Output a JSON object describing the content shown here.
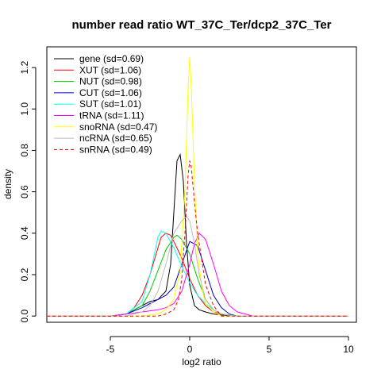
{
  "chart_data": {
    "type": "line",
    "title": "number read ratio WT_37C_Ter/dcp2_37C_Ter",
    "xlabel": "log2 ratio",
    "ylabel": "density",
    "xlim": [
      -9,
      10.5
    ],
    "ylim": [
      -0.03,
      1.3
    ],
    "x_ticks": [
      -5,
      0,
      5,
      10
    ],
    "y_ticks": [
      0.0,
      0.2,
      0.4,
      0.6,
      0.8,
      1.0,
      1.2
    ],
    "grid": false,
    "legend_position": "top-left",
    "series": [
      {
        "name": "gene (sd=0.69)",
        "color": "#000000",
        "dash": false,
        "x": [
          -9,
          -5,
          -4,
          -3.5,
          -3,
          -2.5,
          -2,
          -1.5,
          -1.2,
          -1.0,
          -0.8,
          -0.6,
          -0.4,
          -0.2,
          0.0,
          0.3,
          0.6,
          1.0,
          1.5,
          2.0,
          3.0,
          10
        ],
        "y": [
          0,
          0,
          0.01,
          0.03,
          0.05,
          0.07,
          0.08,
          0.12,
          0.25,
          0.5,
          0.75,
          0.78,
          0.65,
          0.35,
          0.15,
          0.05,
          0.03,
          0.02,
          0.01,
          0.005,
          0,
          0
        ]
      },
      {
        "name": "XUT (sd=1.06)",
        "color": "#ff0000",
        "dash": false,
        "x": [
          -9,
          -5,
          -4,
          -3.5,
          -3,
          -2.5,
          -2,
          -1.8,
          -1.5,
          -1.2,
          -1.0,
          -0.5,
          0.0,
          0.5,
          1.0,
          1.5,
          2.0,
          3.0,
          10
        ],
        "y": [
          0,
          0,
          0.01,
          0.04,
          0.1,
          0.2,
          0.33,
          0.38,
          0.4,
          0.39,
          0.36,
          0.28,
          0.18,
          0.1,
          0.05,
          0.02,
          0.01,
          0,
          0
        ]
      },
      {
        "name": "NUT (sd=0.98)",
        "color": "#00cc00",
        "dash": false,
        "x": [
          -9,
          -5,
          -4,
          -3,
          -2.5,
          -2,
          -1.5,
          -1.0,
          -0.8,
          -0.5,
          0.0,
          0.5,
          1.0,
          1.5,
          2.0,
          3.0,
          10
        ],
        "y": [
          0,
          0,
          0.01,
          0.05,
          0.12,
          0.22,
          0.32,
          0.38,
          0.39,
          0.37,
          0.3,
          0.18,
          0.08,
          0.03,
          0.01,
          0,
          0
        ]
      },
      {
        "name": "CUT (sd=1.06)",
        "color": "#0000cc",
        "dash": false,
        "x": [
          -9,
          -5,
          -4,
          -3,
          -2.5,
          -2,
          -1.5,
          -1.0,
          -0.5,
          0.0,
          0.5,
          1.0,
          1.5,
          2.0,
          2.5,
          3.0,
          10
        ],
        "y": [
          0,
          0,
          0.01,
          0.04,
          0.06,
          0.08,
          0.1,
          0.14,
          0.25,
          0.36,
          0.34,
          0.22,
          0.1,
          0.04,
          0.01,
          0,
          0
        ]
      },
      {
        "name": "SUT (sd=1.01)",
        "color": "#00ffff",
        "dash": false,
        "x": [
          -9,
          -5,
          -4,
          -3,
          -2.5,
          -2,
          -1.8,
          -1.5,
          -1.0,
          -0.5,
          0.0,
          0.5,
          1.0,
          1.5,
          2.0,
          3.0,
          10
        ],
        "y": [
          0,
          0,
          0.01,
          0.07,
          0.2,
          0.38,
          0.41,
          0.4,
          0.33,
          0.24,
          0.16,
          0.1,
          0.06,
          0.03,
          0.01,
          0,
          0
        ]
      },
      {
        "name": "tRNA (sd=1.11)",
        "color": "#ff00ff",
        "dash": false,
        "x": [
          -9,
          -5,
          -4,
          -3,
          -2,
          -1.5,
          -1.0,
          -0.5,
          0.0,
          0.3,
          0.6,
          1.0,
          1.5,
          2.0,
          2.5,
          3.0,
          3.5,
          4.0,
          10
        ],
        "y": [
          0,
          0,
          0.01,
          0.02,
          0.03,
          0.04,
          0.06,
          0.12,
          0.25,
          0.35,
          0.4,
          0.37,
          0.25,
          0.12,
          0.05,
          0.02,
          0.01,
          0,
          0
        ]
      },
      {
        "name": "snoRNA (sd=0.47)",
        "color": "#ffff00",
        "dash": false,
        "x": [
          -9,
          -3,
          -2,
          -1.5,
          -1.0,
          -0.6,
          -0.3,
          -0.1,
          0.0,
          0.1,
          0.3,
          0.5,
          0.8,
          1.0,
          1.5,
          2.0,
          10
        ],
        "y": [
          0,
          0,
          0.01,
          0.03,
          0.08,
          0.22,
          0.6,
          1.1,
          1.25,
          1.1,
          0.65,
          0.3,
          0.12,
          0.06,
          0.02,
          0,
          0
        ]
      },
      {
        "name": "ncRNA (sd=0.65)",
        "color": "#bbbbbb",
        "dash": false,
        "x": [
          -9,
          -4,
          -3,
          -2.5,
          -2,
          -1.5,
          -1.0,
          -0.5,
          -0.2,
          0.0,
          0.3,
          0.6,
          1.0,
          1.5,
          2.0,
          3.0,
          10
        ],
        "y": [
          0,
          0,
          0.02,
          0.05,
          0.12,
          0.25,
          0.4,
          0.46,
          0.48,
          0.46,
          0.35,
          0.2,
          0.08,
          0.03,
          0.01,
          0,
          0
        ]
      },
      {
        "name": "snRNA (sd=0.49)",
        "color": "#ff0000",
        "dash": true,
        "x": [
          -9,
          -2,
          -1.5,
          -1.0,
          -0.7,
          -0.5,
          -0.3,
          -0.1,
          0.0,
          0.1,
          0.3,
          0.5,
          0.8,
          1.0,
          1.5,
          2.0,
          10
        ],
        "y": [
          0,
          0,
          0.01,
          0.03,
          0.08,
          0.18,
          0.4,
          0.68,
          0.75,
          0.72,
          0.55,
          0.4,
          0.25,
          0.15,
          0.05,
          0,
          0
        ]
      }
    ]
  }
}
